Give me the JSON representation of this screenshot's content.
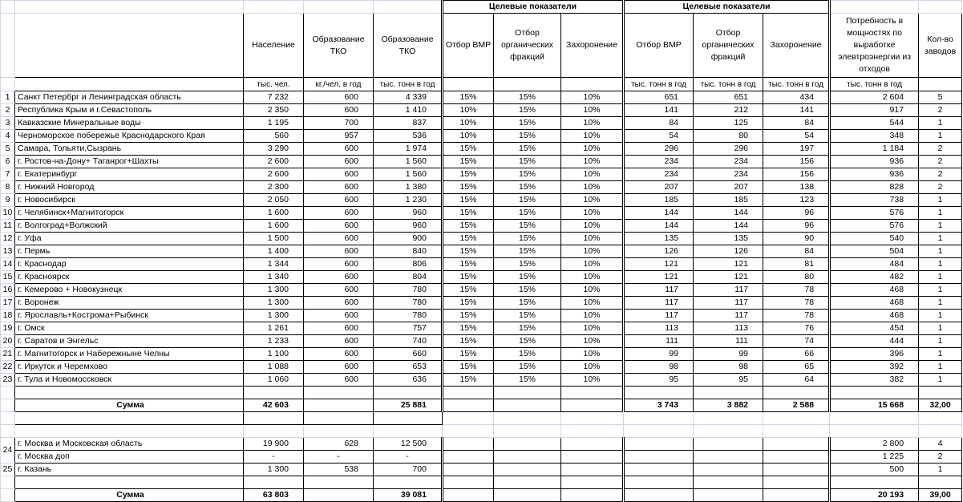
{
  "header": {
    "group_label_1": "Целевые показатели",
    "group_label_2": "Целевые показатели",
    "columns": {
      "population": "Население",
      "tko_per_capita": "Образование ТКО",
      "tko_total": "Образование ТКО",
      "bmp_pct": "Отбор ВМР",
      "organic_pct": "Отбор органических фракций",
      "burial_pct": "Захоронение",
      "bmp": "Отбор ВМР",
      "organic": "Отбор органических фракций",
      "burial": "Захоронение",
      "energy_need": "Потребность в мощностях по выработке элевтроэнергии из отходов",
      "plants": "Кол-во заводов"
    },
    "units": {
      "population": "тыс. чел.",
      "tko_per_capita": "кг./чел. в год",
      "tko_total": "тыс. тонн в год",
      "bmp": "тыс. тонн в год",
      "organic": "тыс. тонн в год",
      "burial": "тыс. тонн в год",
      "energy_need": "тыс. тонн в год"
    }
  },
  "rows": [
    [
      "1",
      "Санкт Петербрг и Ленинградская область",
      "7 232",
      "600",
      "4 339",
      "15%",
      "15%",
      "10%",
      "651",
      "651",
      "434",
      "2 604",
      "5"
    ],
    [
      "2",
      "Республика Крым и г.Севастополь",
      "2 350",
      "600",
      "1 410",
      "10%",
      "15%",
      "10%",
      "141",
      "212",
      "141",
      "917",
      "2"
    ],
    [
      "3",
      "Кавказские Минеральные воды",
      "1 195",
      "700",
      "837",
      "10%",
      "15%",
      "10%",
      "84",
      "125",
      "84",
      "544",
      "1"
    ],
    [
      "4",
      "Черноморское побережье Краснодарского Края",
      "560",
      "957",
      "536",
      "10%",
      "15%",
      "10%",
      "54",
      "80",
      "54",
      "348",
      "1"
    ],
    [
      "5",
      "Самара, Тольяти,Сызрань",
      "3 290",
      "600",
      "1 974",
      "15%",
      "15%",
      "10%",
      "296",
      "296",
      "197",
      "1 184",
      "2"
    ],
    [
      "6",
      "г. Ростов-на-Дону+ Таганрог+Шахты",
      "2 600",
      "600",
      "1 560",
      "15%",
      "15%",
      "10%",
      "234",
      "234",
      "156",
      "936",
      "2"
    ],
    [
      "7",
      "г. Екатеринбург",
      "2 600",
      "600",
      "1 560",
      "15%",
      "15%",
      "10%",
      "234",
      "234",
      "156",
      "936",
      "2"
    ],
    [
      "8",
      "г. Нижний Новгород",
      "2 300",
      "600",
      "1 380",
      "15%",
      "15%",
      "10%",
      "207",
      "207",
      "138",
      "828",
      "2"
    ],
    [
      "9",
      "г. Новосибирск",
      "2 050",
      "600",
      "1 230",
      "15%",
      "15%",
      "10%",
      "185",
      "185",
      "123",
      "738",
      "1"
    ],
    [
      "10",
      "г. Челябинск+Магнитогорск",
      "1 600",
      "600",
      "960",
      "15%",
      "15%",
      "10%",
      "144",
      "144",
      "96",
      "576",
      "1"
    ],
    [
      "11",
      "г. Волгоград+Волжский",
      "1 600",
      "600",
      "960",
      "15%",
      "15%",
      "10%",
      "144",
      "144",
      "96",
      "576",
      "1"
    ],
    [
      "12",
      "г. Уфа",
      "1 500",
      "600",
      "900",
      "15%",
      "15%",
      "10%",
      "135",
      "135",
      "90",
      "540",
      "1"
    ],
    [
      "13",
      "г. Пермь",
      "1 400",
      "600",
      "840",
      "15%",
      "15%",
      "10%",
      "126",
      "126",
      "84",
      "504",
      "1"
    ],
    [
      "14",
      "г. Краснодар",
      "1 344",
      "600",
      "806",
      "15%",
      "15%",
      "10%",
      "121",
      "121",
      "81",
      "484",
      "1"
    ],
    [
      "15",
      "г. Красноярск",
      "1 340",
      "600",
      "804",
      "15%",
      "15%",
      "10%",
      "121",
      "121",
      "80",
      "482",
      "1"
    ],
    [
      "16",
      "г. Кемерово + Новокузнецк",
      "1 300",
      "600",
      "780",
      "15%",
      "15%",
      "10%",
      "117",
      "117",
      "78",
      "468",
      "1"
    ],
    [
      "17",
      "г. Воронеж",
      "1 300",
      "600",
      "780",
      "15%",
      "15%",
      "10%",
      "117",
      "117",
      "78",
      "468",
      "1"
    ],
    [
      "18",
      "г. Ярославль+Кострома+Рыбинск",
      "1 300",
      "600",
      "780",
      "15%",
      "15%",
      "10%",
      "117",
      "117",
      "78",
      "468",
      "1"
    ],
    [
      "19",
      "г. Омск",
      "1 261",
      "600",
      "757",
      "15%",
      "15%",
      "10%",
      "113",
      "113",
      "76",
      "454",
      "1"
    ],
    [
      "20",
      "г. Саратов и Энгельс",
      "1 233",
      "600",
      "740",
      "15%",
      "15%",
      "10%",
      "111",
      "111",
      "74",
      "444",
      "1"
    ],
    [
      "21",
      "г. Магнитогорск и Набережныне Челны",
      "1 100",
      "600",
      "660",
      "15%",
      "15%",
      "10%",
      "99",
      "99",
      "66",
      "396",
      "1"
    ],
    [
      "22",
      "г. Иркутск и Черемхово",
      "1 088",
      "600",
      "653",
      "15%",
      "15%",
      "10%",
      "98",
      "98",
      "65",
      "392",
      "1"
    ],
    [
      "23",
      "г. Тула и Новомосcковск",
      "1 060",
      "600",
      "636",
      "15%",
      "15%",
      "10%",
      "95",
      "95",
      "64",
      "382",
      "1"
    ]
  ],
  "total_1": {
    "label": "Сумма",
    "population": "42 603",
    "tko_total": "25 881",
    "bmp": "3 743",
    "organic": "3 882",
    "burial": "2 588",
    "energy_need": "15 668",
    "plants": "32,00"
  },
  "extra_rows": [
    [
      "24",
      "г. Москва и Московская область",
      "19 900",
      "628",
      "12 500",
      "",
      "",
      "",
      "",
      "",
      "",
      "2 800",
      "4"
    ],
    [
      "",
      "г. Москва доп",
      "-",
      "-",
      "-",
      "",
      "",
      "",
      "",
      "",
      "",
      "1 225",
      "2"
    ],
    [
      "25",
      "г. Казань",
      "1 300",
      "538",
      "700",
      "",
      "",
      "",
      "",
      "",
      "",
      "500",
      "1"
    ]
  ],
  "total_2": {
    "label": "Сумма",
    "population": "63 803",
    "tko_total": "39 081",
    "bmp": "",
    "organic": "",
    "burial": "",
    "energy_need": "20 193",
    "plants": "39,00"
  }
}
